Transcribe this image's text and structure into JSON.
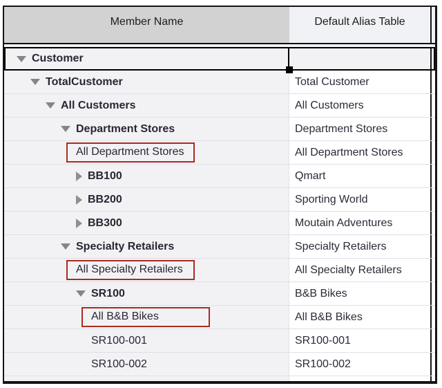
{
  "table": {
    "columns": [
      {
        "label": "Member Name"
      },
      {
        "label": "Default Alias Table"
      }
    ],
    "rows": [
      {
        "name": "Customer",
        "alias": "",
        "level": 0,
        "expander": "expanded",
        "bold": true,
        "highlighted": false,
        "selected": true
      },
      {
        "name": "TotalCustomer",
        "alias": "Total Customer",
        "level": 1,
        "expander": "expanded",
        "bold": true,
        "highlighted": false,
        "selected": false
      },
      {
        "name": "All Customers",
        "alias": "All Customers",
        "level": 2,
        "expander": "expanded",
        "bold": true,
        "highlighted": false,
        "selected": false
      },
      {
        "name": "Department Stores",
        "alias": "Department Stores",
        "level": 3,
        "expander": "expanded",
        "bold": true,
        "highlighted": false,
        "selected": false
      },
      {
        "name": "All Department Stores",
        "alias": "All Department Stores",
        "level": 4,
        "expander": "none",
        "bold": false,
        "highlighted": true,
        "selected": false
      },
      {
        "name": "BB100",
        "alias": "Qmart",
        "level": 4,
        "expander": "collapsed",
        "bold": true,
        "highlighted": false,
        "selected": false
      },
      {
        "name": "BB200",
        "alias": "Sporting World",
        "level": 4,
        "expander": "collapsed",
        "bold": true,
        "highlighted": false,
        "selected": false
      },
      {
        "name": "BB300",
        "alias": "Moutain Adventures",
        "level": 4,
        "expander": "collapsed",
        "bold": true,
        "highlighted": false,
        "selected": false
      },
      {
        "name": "Specialty Retailers",
        "alias": "Specialty Retailers",
        "level": 3,
        "expander": "expanded",
        "bold": true,
        "highlighted": false,
        "selected": false
      },
      {
        "name": "All Specialty Retailers",
        "alias": "All Specialty Retailers",
        "level": 4,
        "expander": "none",
        "bold": false,
        "highlighted": true,
        "selected": false
      },
      {
        "name": "SR100",
        "alias": "B&B Bikes",
        "level": 4,
        "expander": "expanded",
        "bold": true,
        "highlighted": false,
        "selected": false
      },
      {
        "name": "All B&B Bikes",
        "alias": "All B&B Bikes",
        "level": 5,
        "expander": "none",
        "bold": false,
        "highlighted": true,
        "selected": false
      },
      {
        "name": "SR100-001",
        "alias": "SR100-001",
        "level": 5,
        "expander": "none",
        "bold": false,
        "highlighted": false,
        "selected": false
      },
      {
        "name": "SR100-002",
        "alias": "SR100-002",
        "level": 5,
        "expander": "none",
        "bold": false,
        "highlighted": false,
        "selected": false
      }
    ]
  },
  "colors": {
    "header_name_bg": "#d2d2d2",
    "header_alias_bg": "#f1f2f5",
    "name_column_bg": "#f2f2f5",
    "alias_column_bg": "#ffffff",
    "row_separator": "#dce1e8",
    "grid_border": "#141414",
    "selection_border": "#000000",
    "annotation_box": "#aa2b1f",
    "expander_triangle": "#858585",
    "text": "#2a2533"
  }
}
